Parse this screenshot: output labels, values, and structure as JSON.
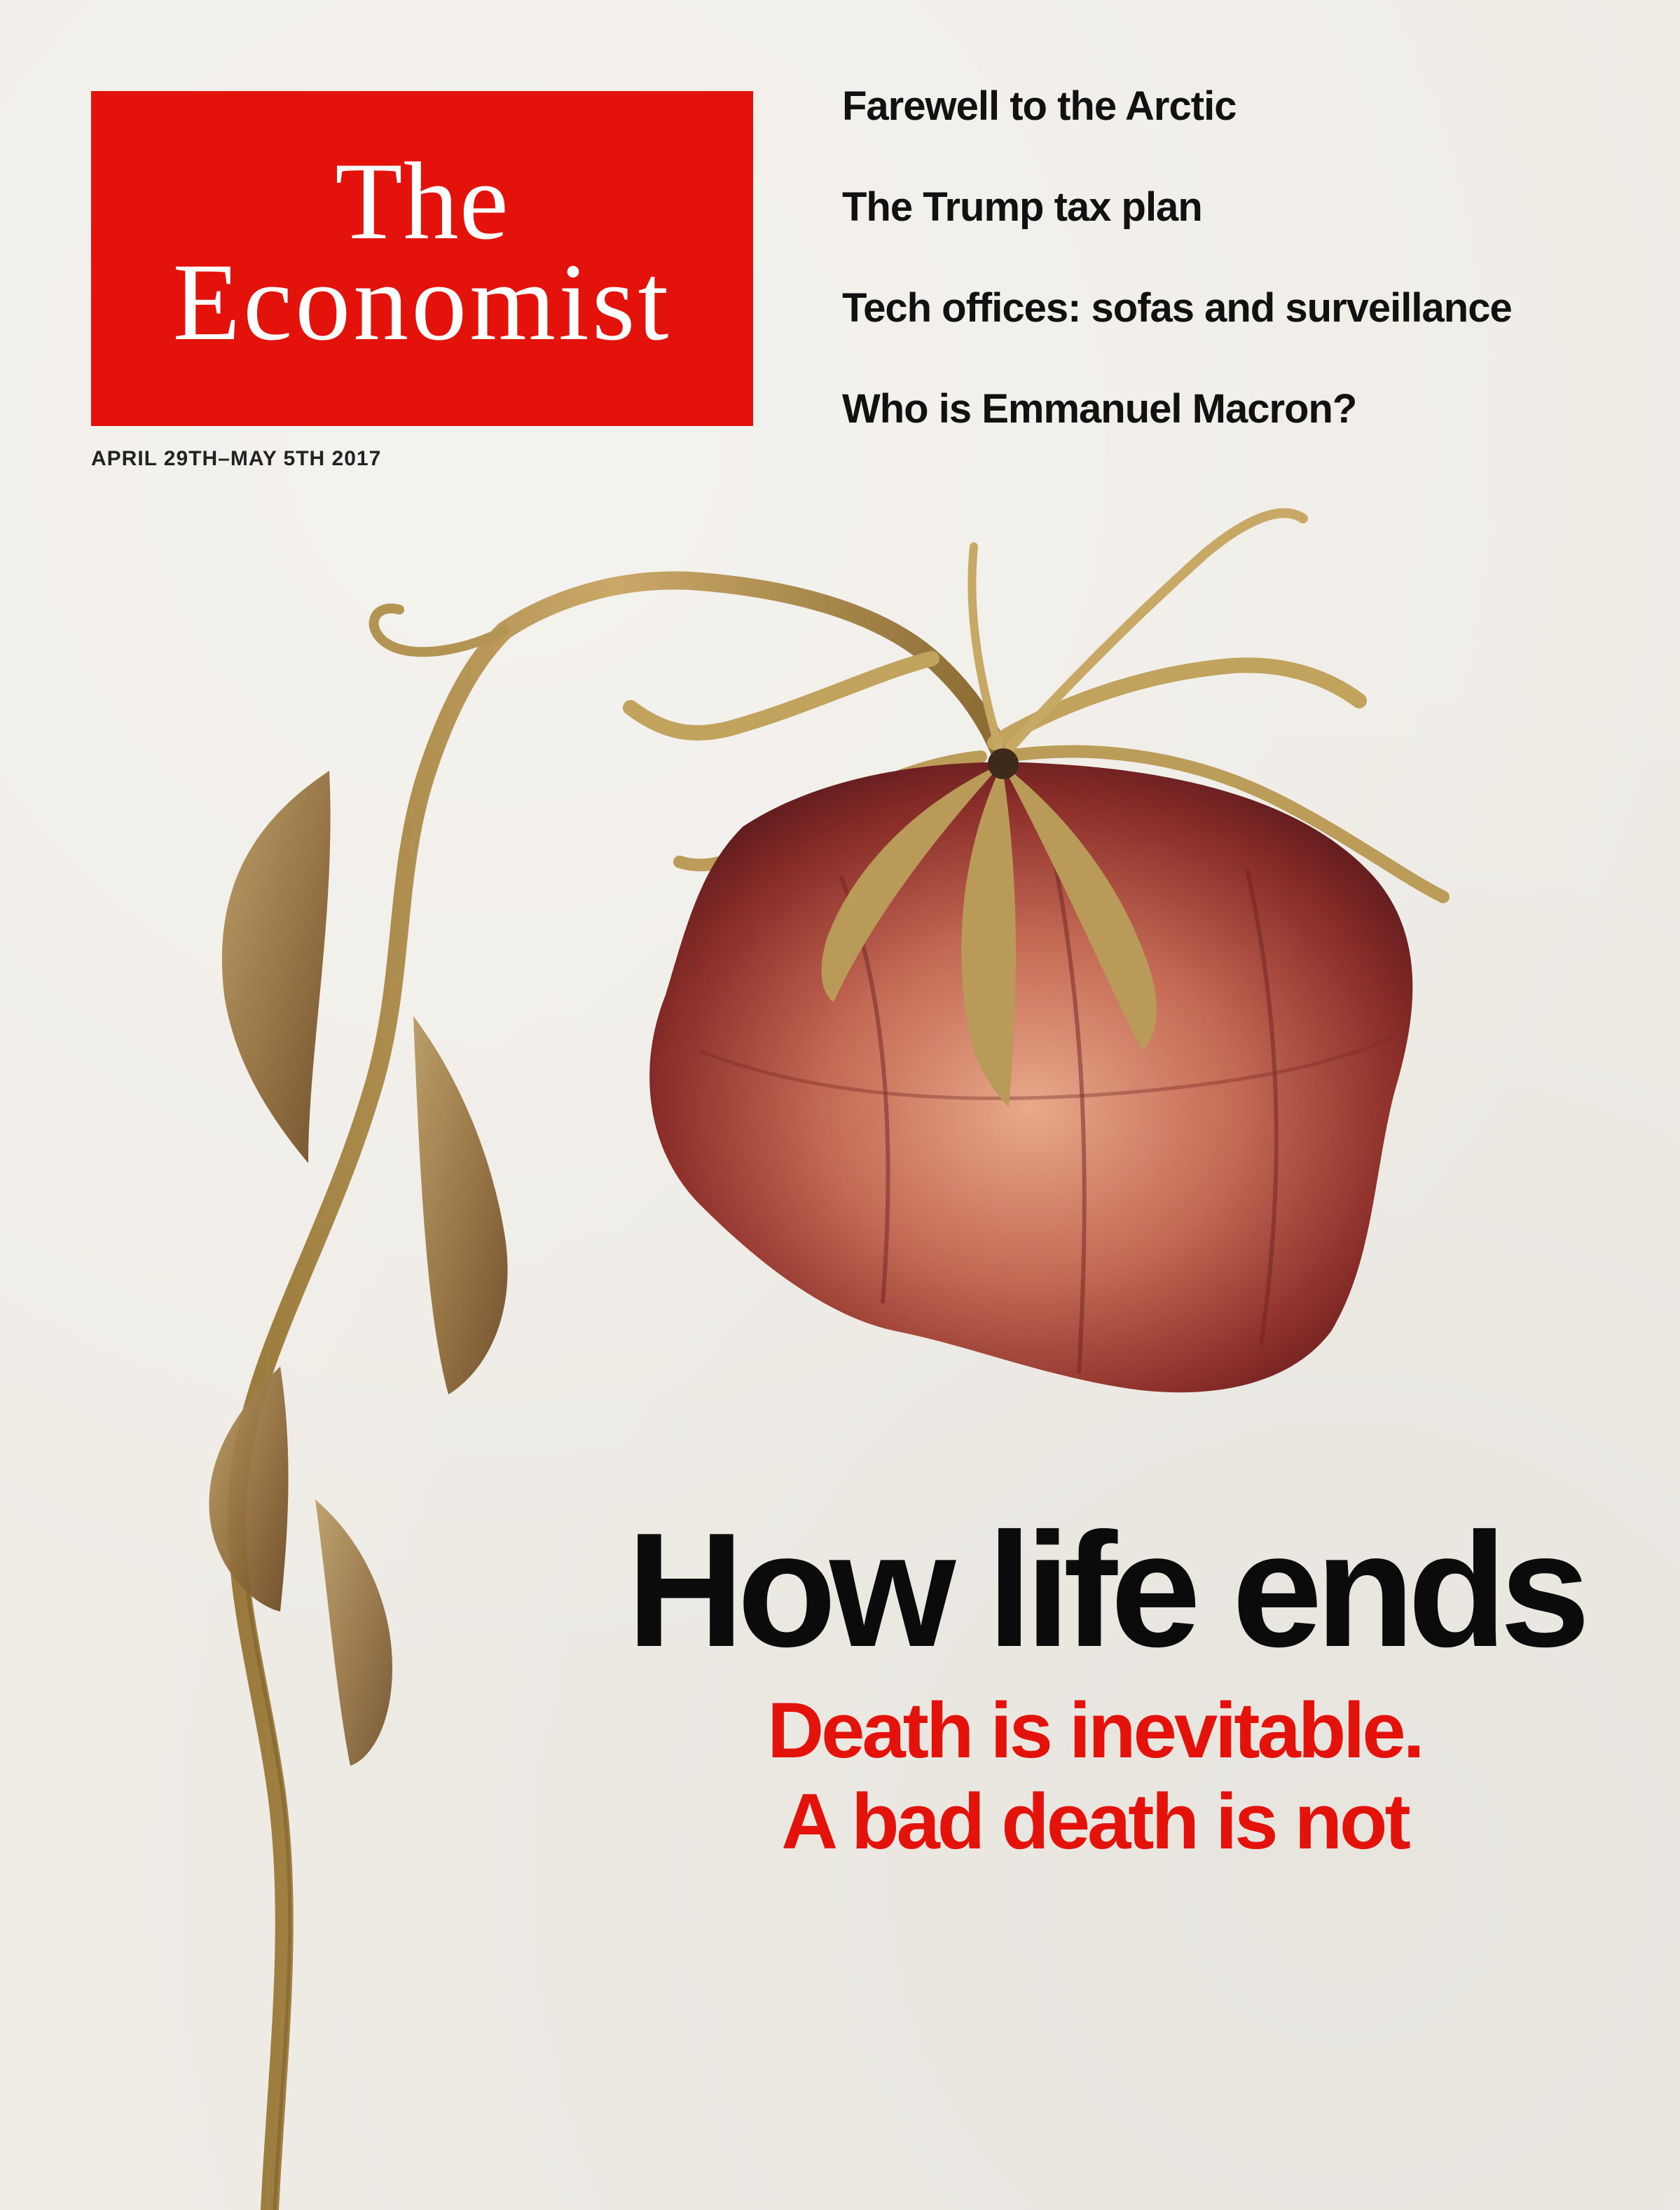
{
  "masthead": {
    "line1": "The",
    "line2": "Economist",
    "color": "#e3120b"
  },
  "issue_date": "APRIL 29TH–MAY 5TH 2017",
  "teasers": [
    "Farewell to the Arctic",
    "The Trump tax plan",
    "Tech offices: sofas and surveillance",
    "Who is Emmanuel Macron?"
  ],
  "cover_story": {
    "headline": "How life ends",
    "subhead_line1": "Death is inevitable.",
    "subhead_line2": "A bad death is not"
  },
  "illustration": {
    "icon": "wilted-rose-icon"
  }
}
